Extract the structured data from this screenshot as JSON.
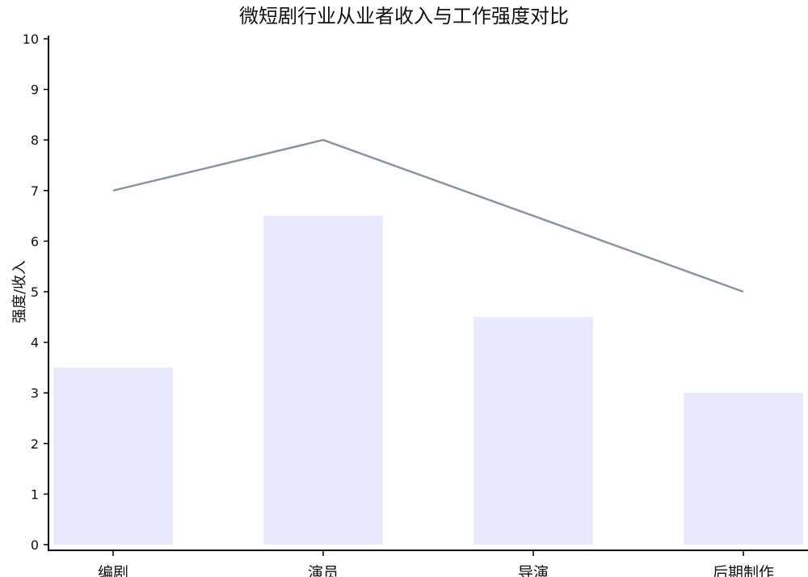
{
  "chart_data": {
    "type": "bar",
    "title": "微短剧行业从业者收入与工作强度对比",
    "xlabel": "",
    "ylabel": "强度/收入",
    "ylim": [
      0,
      10
    ],
    "yticks": [
      0,
      1,
      2,
      3,
      4,
      5,
      6,
      7,
      8,
      9,
      10
    ],
    "categories": [
      "编剧",
      "演员",
      "导演",
      "后期制作"
    ],
    "series": [
      {
        "type": "bar",
        "values": [
          3.5,
          6.5,
          4.5,
          3.0
        ],
        "color": "#e8eafc"
      },
      {
        "type": "line",
        "values": [
          7,
          8,
          6.5,
          5
        ],
        "color": "#8a94a0"
      }
    ],
    "grid": false,
    "legend": "none"
  }
}
